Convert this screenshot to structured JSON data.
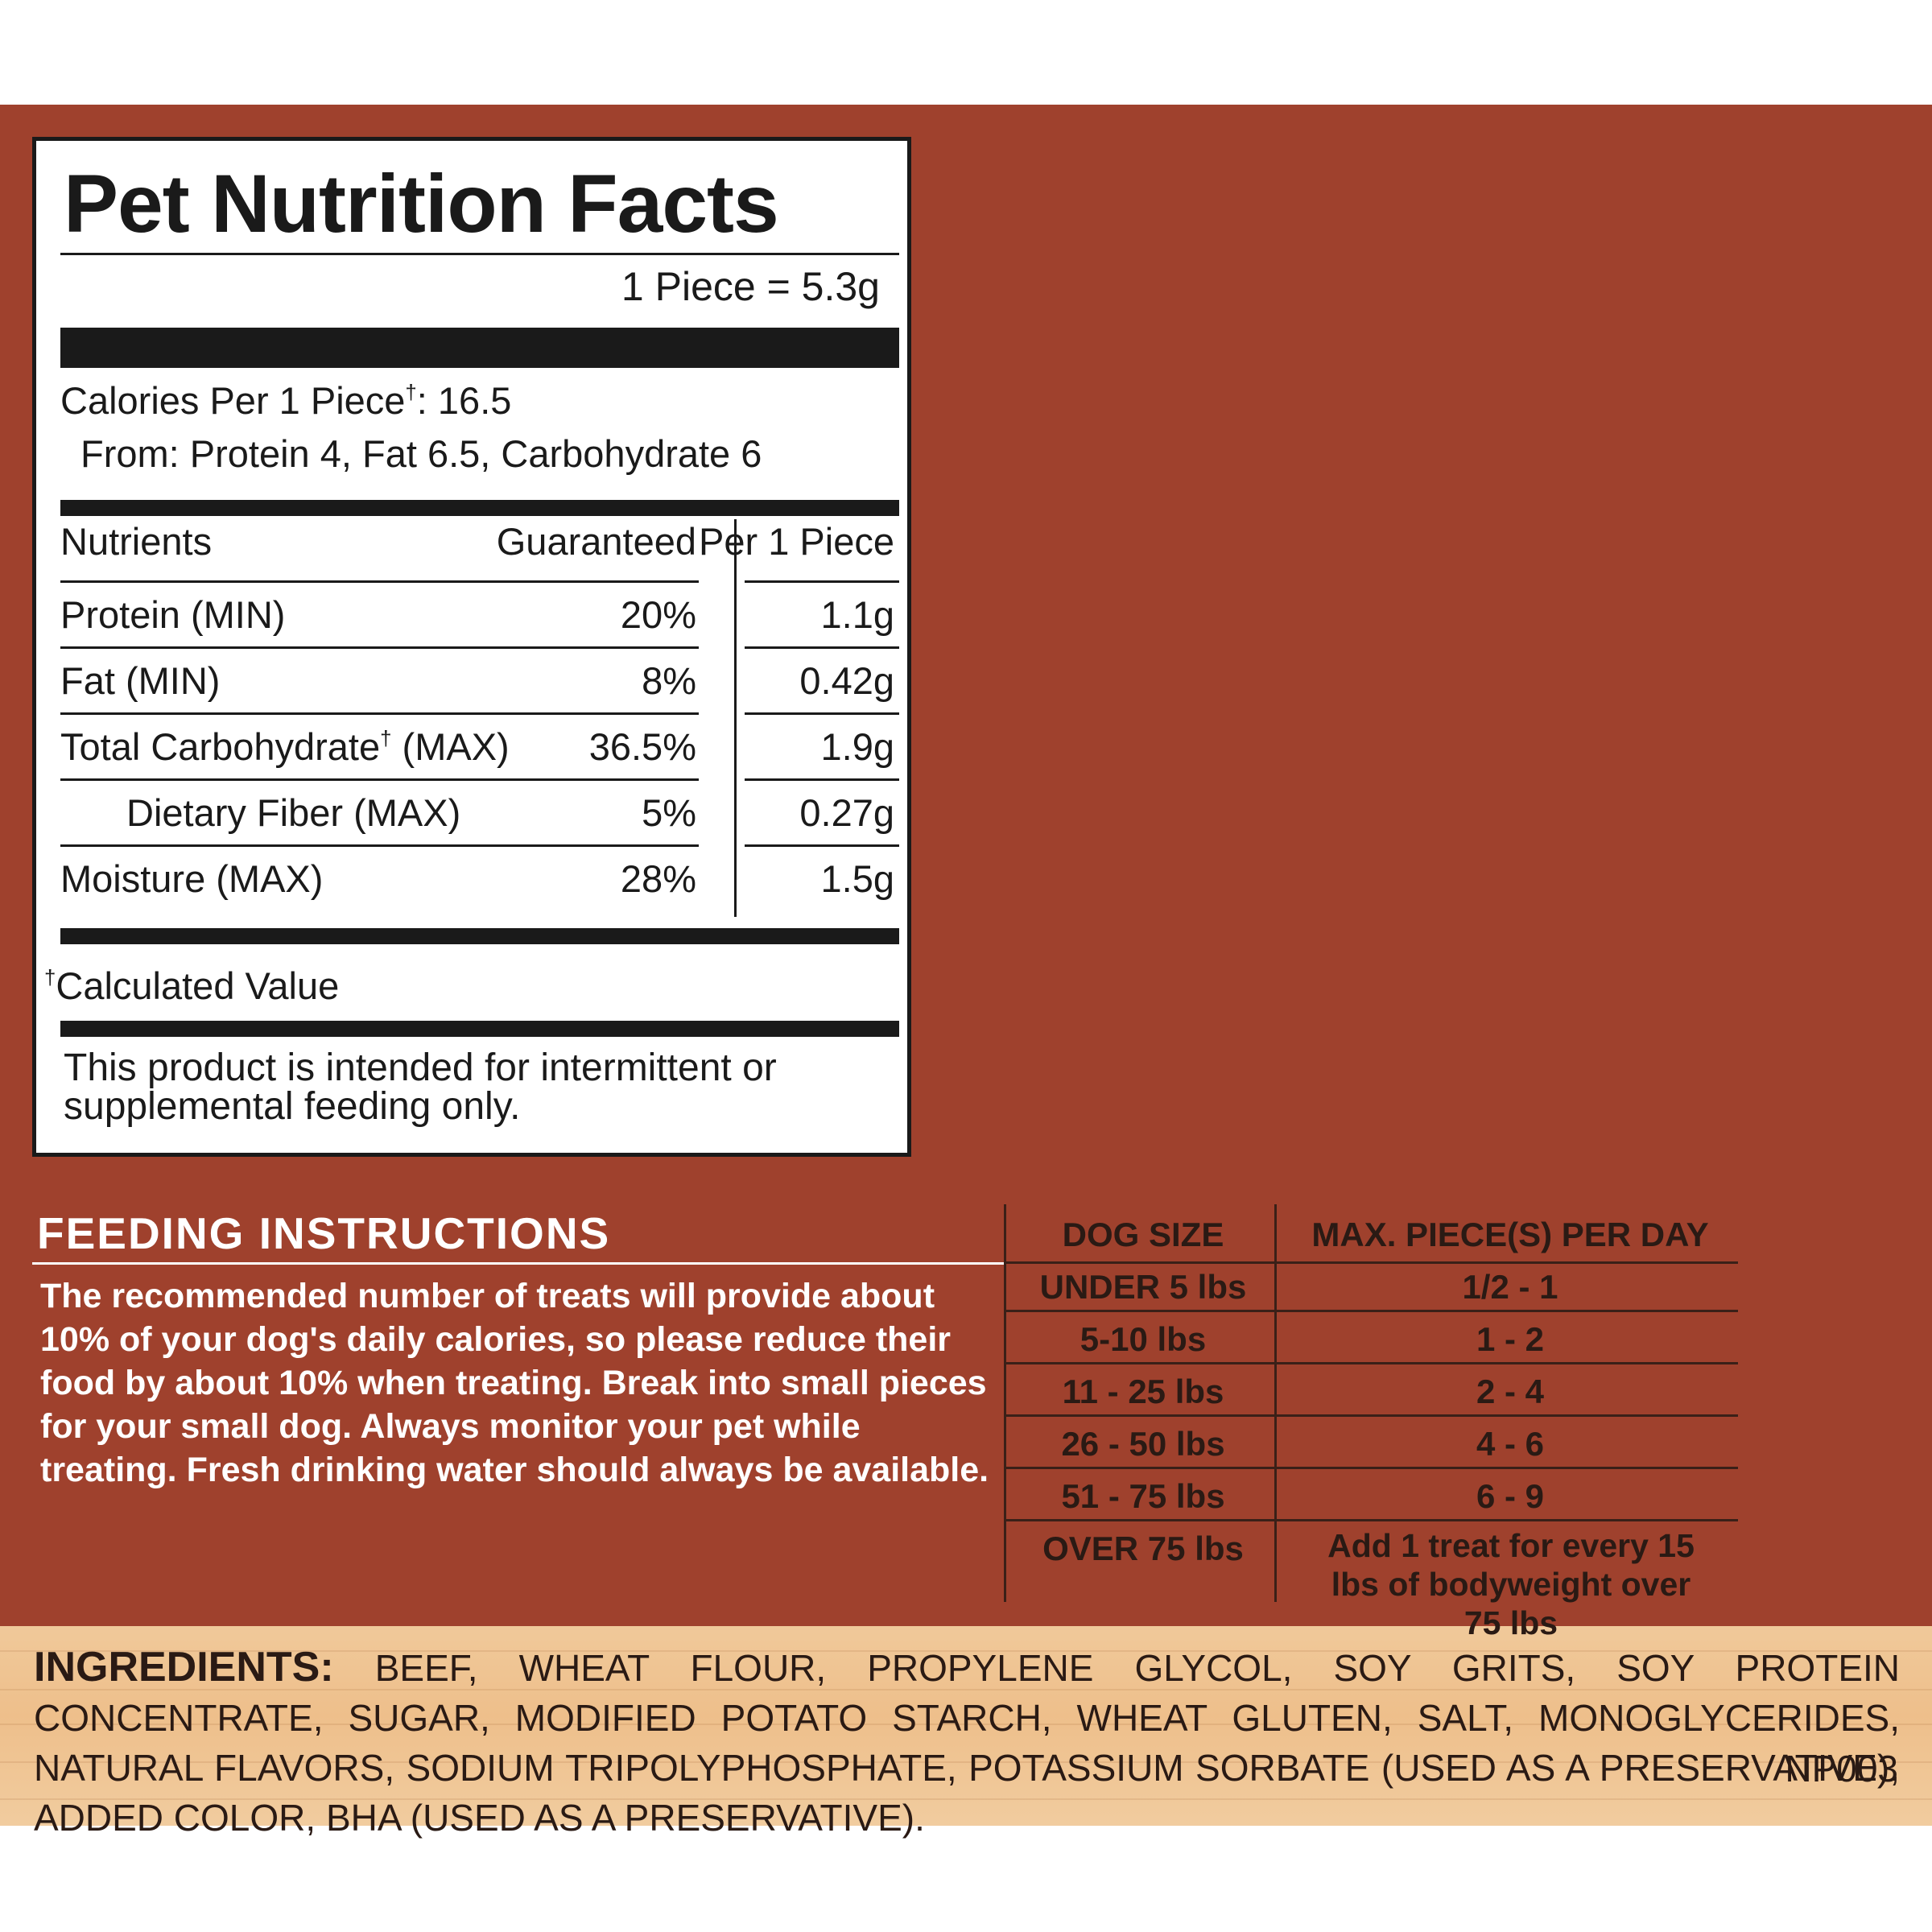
{
  "nutrition_facts": {
    "title": "Pet Nutrition Facts",
    "serving": "1 Piece = 5.3g",
    "calories_label": "Calories Per 1 Piece",
    "calories_value": ": 16.5",
    "calories_from": "From: Protein 4, Fat 6.5, Carbohydrate 6",
    "headers": {
      "nutrients": "Nutrients",
      "guaranteed": "Guaranteed",
      "per_piece": "Per 1 Piece"
    },
    "rows": [
      {
        "name": "Protein (MIN)",
        "guaranteed": "20%",
        "per_piece": "1.1g"
      },
      {
        "name": "Fat (MIN)",
        "guaranteed": "8%",
        "per_piece": "0.42g"
      },
      {
        "name": "Total Carbohydrate",
        "suffix": " (MAX)",
        "guaranteed": "36.5%",
        "per_piece": "1.9g"
      },
      {
        "name": "Dietary Fiber (MAX)",
        "guaranteed": "5%",
        "per_piece": "0.27g"
      },
      {
        "name": "Moisture (MAX)",
        "guaranteed": "28%",
        "per_piece": "1.5g"
      }
    ],
    "dagger": "†",
    "calculated_value": "Calculated Value",
    "intended": "This product is intended for intermittent or supplemental feeding only."
  },
  "feeding": {
    "title": "FEEDING INSTRUCTIONS",
    "body": "The recommended number of treats will provide about 10% of your dog's daily calories, so please reduce their food by about 10% when treating. Break into small pieces for your small dog. Always monitor your pet while treating. Fresh drinking water should always be available."
  },
  "dog_table": {
    "headers": [
      "DOG SIZE",
      "MAX. PIECE(S) PER DAY"
    ],
    "rows": [
      [
        "UNDER 5 lbs",
        "1/2 - 1"
      ],
      [
        "5-10 lbs",
        "1 - 2"
      ],
      [
        "11 - 25 lbs",
        "2 - 4"
      ],
      [
        "26 - 50 lbs",
        "4 - 6"
      ],
      [
        "51 - 75 lbs",
        "6 - 9"
      ],
      [
        "OVER 75 lbs",
        "Add 1 treat for every 15 lbs of bodyweight over 75 lbs"
      ]
    ]
  },
  "ingredients": {
    "label": "INGREDIENTS:",
    "text": "BEEF, WHEAT FLOUR, PROPYLENE GLYCOL, SOY GRITS, SOY PROTEIN CONCENTRATE, SUGAR, MODIFIED POTATO STARCH, WHEAT GLUTEN, SALT, MONOGLYCERIDES, NATURAL FLAVORS, SODIUM TRIPOLYPHOSPHATE, POTASSIUM SORBATE (USED AS A PRESERVATIVE), ADDED COLOR, BHA (USED AS A PRESERVATIVE).",
    "code": "NP003"
  },
  "colors": {
    "panel": "#9f412d",
    "wood": "#eebf8b",
    "ink": "#1a1a1a"
  }
}
